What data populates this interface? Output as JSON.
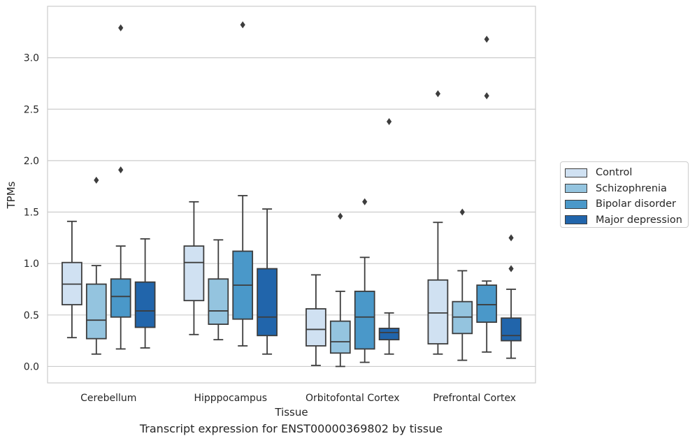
{
  "chart_data": {
    "type": "box",
    "caption": "Transcript expression for ENST00000369802 by tissue",
    "xlabel": "Tissue",
    "ylabel": "TPMs",
    "ylim": [
      -0.16,
      3.5
    ],
    "yticks": [
      "0.0",
      "0.5",
      "1.0",
      "1.5",
      "2.0",
      "2.5",
      "3.0"
    ],
    "ytick_values": [
      0,
      0.5,
      1.0,
      1.5,
      2.0,
      2.5,
      3.0
    ],
    "grid": "horizontal",
    "legend_position": "right",
    "categories": [
      "Cerebellum",
      "Hipppocampus",
      "Orbitofontal Cortex",
      "Prefrontal Cortex"
    ],
    "series": [
      {
        "name": "Control",
        "color": "#d0e1f2",
        "boxes": [
          {
            "whisker_low": 0.28,
            "q1": 0.6,
            "median": 0.8,
            "q3": 1.01,
            "whisker_high": 1.41,
            "outliers": []
          },
          {
            "whisker_low": 0.31,
            "q1": 0.64,
            "median": 1.01,
            "q3": 1.17,
            "whisker_high": 1.6,
            "outliers": []
          },
          {
            "whisker_low": 0.01,
            "q1": 0.2,
            "median": 0.36,
            "q3": 0.56,
            "whisker_high": 0.89,
            "outliers": []
          },
          {
            "whisker_low": 0.12,
            "q1": 0.22,
            "median": 0.52,
            "q3": 0.84,
            "whisker_high": 1.4,
            "outliers": [
              2.65
            ]
          }
        ]
      },
      {
        "name": "Schizophrenia",
        "color": "#94c4df",
        "boxes": [
          {
            "whisker_low": 0.12,
            "q1": 0.27,
            "median": 0.45,
            "q3": 0.8,
            "whisker_high": 0.98,
            "outliers": [
              1.81
            ]
          },
          {
            "whisker_low": 0.26,
            "q1": 0.41,
            "median": 0.54,
            "q3": 0.85,
            "whisker_high": 1.23,
            "outliers": []
          },
          {
            "whisker_low": 0.0,
            "q1": 0.13,
            "median": 0.24,
            "q3": 0.44,
            "whisker_high": 0.73,
            "outliers": [
              1.46
            ]
          },
          {
            "whisker_low": 0.06,
            "q1": 0.32,
            "median": 0.48,
            "q3": 0.63,
            "whisker_high": 0.93,
            "outliers": [
              1.5
            ]
          }
        ]
      },
      {
        "name": "Bipolar disorder",
        "color": "#4a98c9",
        "boxes": [
          {
            "whisker_low": 0.17,
            "q1": 0.48,
            "median": 0.68,
            "q3": 0.85,
            "whisker_high": 1.17,
            "outliers": [
              1.91,
              3.29
            ]
          },
          {
            "whisker_low": 0.2,
            "q1": 0.46,
            "median": 0.79,
            "q3": 1.12,
            "whisker_high": 1.66,
            "outliers": [
              3.32
            ]
          },
          {
            "whisker_low": 0.04,
            "q1": 0.17,
            "median": 0.48,
            "q3": 0.73,
            "whisker_high": 1.06,
            "outliers": [
              1.6
            ]
          },
          {
            "whisker_low": 0.14,
            "q1": 0.43,
            "median": 0.6,
            "q3": 0.79,
            "whisker_high": 0.83,
            "outliers": [
              2.63,
              3.18
            ]
          }
        ]
      },
      {
        "name": "Major depression",
        "color": "#2165ab",
        "boxes": [
          {
            "whisker_low": 0.18,
            "q1": 0.38,
            "median": 0.54,
            "q3": 0.82,
            "whisker_high": 1.24,
            "outliers": []
          },
          {
            "whisker_low": 0.12,
            "q1": 0.3,
            "median": 0.48,
            "q3": 0.95,
            "whisker_high": 1.53,
            "outliers": []
          },
          {
            "whisker_low": 0.12,
            "q1": 0.26,
            "median": 0.33,
            "q3": 0.37,
            "whisker_high": 0.52,
            "outliers": [
              2.38
            ]
          },
          {
            "whisker_low": 0.08,
            "q1": 0.25,
            "median": 0.3,
            "q3": 0.47,
            "whisker_high": 0.75,
            "outliers": [
              0.95,
              1.25
            ]
          }
        ]
      }
    ]
  }
}
